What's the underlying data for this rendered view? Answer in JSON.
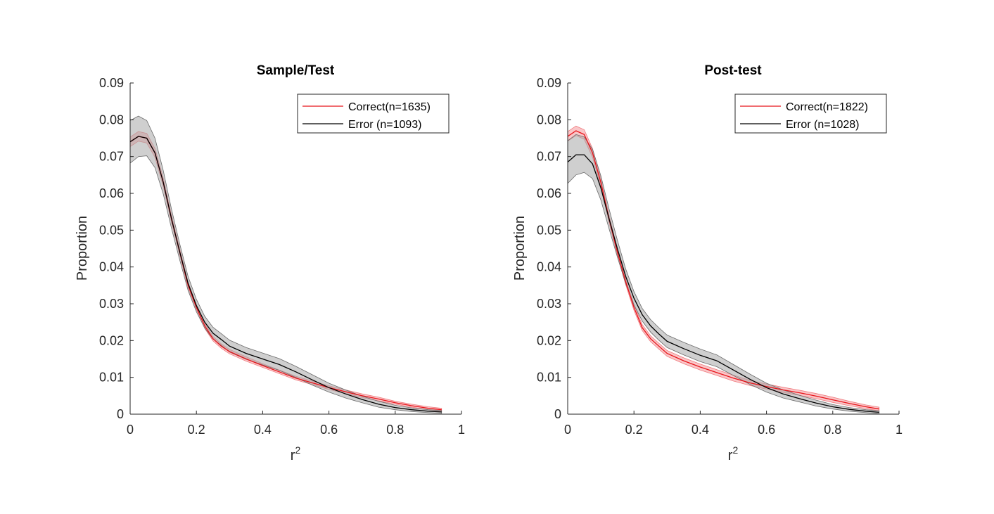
{
  "colors": {
    "correct": "#e8141a",
    "correct_band": "#f7a8aa",
    "error": "#000000",
    "error_band": "#a8a8a8"
  },
  "chart_data": [
    {
      "type": "line",
      "title": "Sample/Test",
      "xlabel": "r",
      "xlabel_superscript": "2",
      "ylabel": "Proportion",
      "xlim": [
        0,
        1
      ],
      "ylim": [
        0,
        0.09
      ],
      "xticks": [
        "0",
        "0.2",
        "0.4",
        "0.6",
        "0.8",
        "1"
      ],
      "yticks": [
        "0",
        "0.01",
        "0.02",
        "0.03",
        "0.04",
        "0.05",
        "0.06",
        "0.07",
        "0.08",
        "0.09"
      ],
      "legend_position": "top-right",
      "grid": false,
      "x": [
        0.0,
        0.025,
        0.05,
        0.075,
        0.1,
        0.125,
        0.15,
        0.175,
        0.2,
        0.225,
        0.25,
        0.275,
        0.3,
        0.35,
        0.4,
        0.45,
        0.5,
        0.55,
        0.6,
        0.65,
        0.7,
        0.75,
        0.8,
        0.85,
        0.9,
        0.94
      ],
      "series": [
        {
          "name": "Correct(n=1635)",
          "color_key": "correct",
          "values": [
            0.074,
            0.0755,
            0.075,
            0.071,
            0.063,
            0.053,
            0.044,
            0.035,
            0.029,
            0.024,
            0.0205,
            0.0185,
            0.017,
            0.015,
            0.0132,
            0.0115,
            0.0098,
            0.0085,
            0.0072,
            0.0061,
            0.005,
            0.0041,
            0.0031,
            0.0023,
            0.0016,
            0.0012
          ],
          "band": [
            0.0013,
            0.0013,
            0.0013,
            0.0012,
            0.0011,
            0.001,
            0.0009,
            0.0008,
            0.0007,
            0.0007,
            0.0006,
            0.0006,
            0.0006,
            0.0006,
            0.0005,
            0.0005,
            0.0005,
            0.0005,
            0.0005,
            0.0005,
            0.0005,
            0.0005,
            0.0004,
            0.0004,
            0.0004,
            0.0004
          ]
        },
        {
          "name": "Error (n=1093)",
          "color_key": "error",
          "values": [
            0.074,
            0.0755,
            0.075,
            0.071,
            0.063,
            0.053,
            0.044,
            0.0355,
            0.0295,
            0.025,
            0.022,
            0.0203,
            0.0185,
            0.0165,
            0.015,
            0.0135,
            0.0115,
            0.0093,
            0.0072,
            0.0055,
            0.004,
            0.0027,
            0.0018,
            0.0012,
            0.0008,
            0.0006
          ],
          "band": [
            0.0058,
            0.0055,
            0.0048,
            0.004,
            0.0032,
            0.0026,
            0.0022,
            0.0019,
            0.0017,
            0.0016,
            0.0016,
            0.0016,
            0.0016,
            0.0016,
            0.0016,
            0.0016,
            0.0015,
            0.0014,
            0.0012,
            0.0011,
            0.0009,
            0.0008,
            0.0006,
            0.0005,
            0.0004,
            0.0004
          ]
        }
      ]
    },
    {
      "type": "line",
      "title": "Post-test",
      "xlabel": "r",
      "xlabel_superscript": "2",
      "ylabel": "Proportion",
      "xlim": [
        0,
        1
      ],
      "ylim": [
        0,
        0.09
      ],
      "xticks": [
        "0",
        "0.2",
        "0.4",
        "0.6",
        "0.8",
        "1"
      ],
      "yticks": [
        "0",
        "0.01",
        "0.02",
        "0.03",
        "0.04",
        "0.05",
        "0.06",
        "0.07",
        "0.08",
        "0.09"
      ],
      "legend_position": "top-right",
      "grid": false,
      "x": [
        0.0,
        0.025,
        0.05,
        0.075,
        0.1,
        0.125,
        0.15,
        0.175,
        0.2,
        0.225,
        0.25,
        0.275,
        0.3,
        0.35,
        0.4,
        0.45,
        0.5,
        0.55,
        0.6,
        0.65,
        0.7,
        0.75,
        0.8,
        0.85,
        0.9,
        0.94
      ],
      "series": [
        {
          "name": "Correct(n=1822)",
          "color_key": "correct",
          "values": [
            0.0755,
            0.077,
            0.076,
            0.071,
            0.063,
            0.053,
            0.044,
            0.036,
            0.029,
            0.0235,
            0.0205,
            0.0185,
            0.0165,
            0.0145,
            0.0128,
            0.0113,
            0.0098,
            0.0085,
            0.0075,
            0.0066,
            0.0058,
            0.0049,
            0.0039,
            0.0029,
            0.002,
            0.0014
          ],
          "band": [
            0.0013,
            0.0013,
            0.0013,
            0.0012,
            0.0011,
            0.001,
            0.0009,
            0.0008,
            0.0008,
            0.0008,
            0.0008,
            0.0008,
            0.0008,
            0.0008,
            0.0008,
            0.0008,
            0.0008,
            0.0007,
            0.0007,
            0.0007,
            0.0007,
            0.0007,
            0.0007,
            0.0006,
            0.0005,
            0.0005
          ]
        },
        {
          "name": "Error (n=1028)",
          "color_key": "error",
          "values": [
            0.0685,
            0.0705,
            0.0705,
            0.068,
            0.0615,
            0.053,
            0.045,
            0.0375,
            0.0315,
            0.027,
            0.024,
            0.0218,
            0.0198,
            0.0178,
            0.016,
            0.0145,
            0.012,
            0.0095,
            0.0072,
            0.0055,
            0.0042,
            0.003,
            0.002,
            0.0013,
            0.0008,
            0.0005
          ],
          "band": [
            0.0058,
            0.0055,
            0.0048,
            0.004,
            0.0033,
            0.0027,
            0.0023,
            0.002,
            0.0018,
            0.0017,
            0.0017,
            0.0017,
            0.0017,
            0.0017,
            0.0017,
            0.0016,
            0.0015,
            0.0014,
            0.0012,
            0.0011,
            0.0009,
            0.0008,
            0.0006,
            0.0005,
            0.0004,
            0.0004
          ]
        }
      ]
    }
  ]
}
